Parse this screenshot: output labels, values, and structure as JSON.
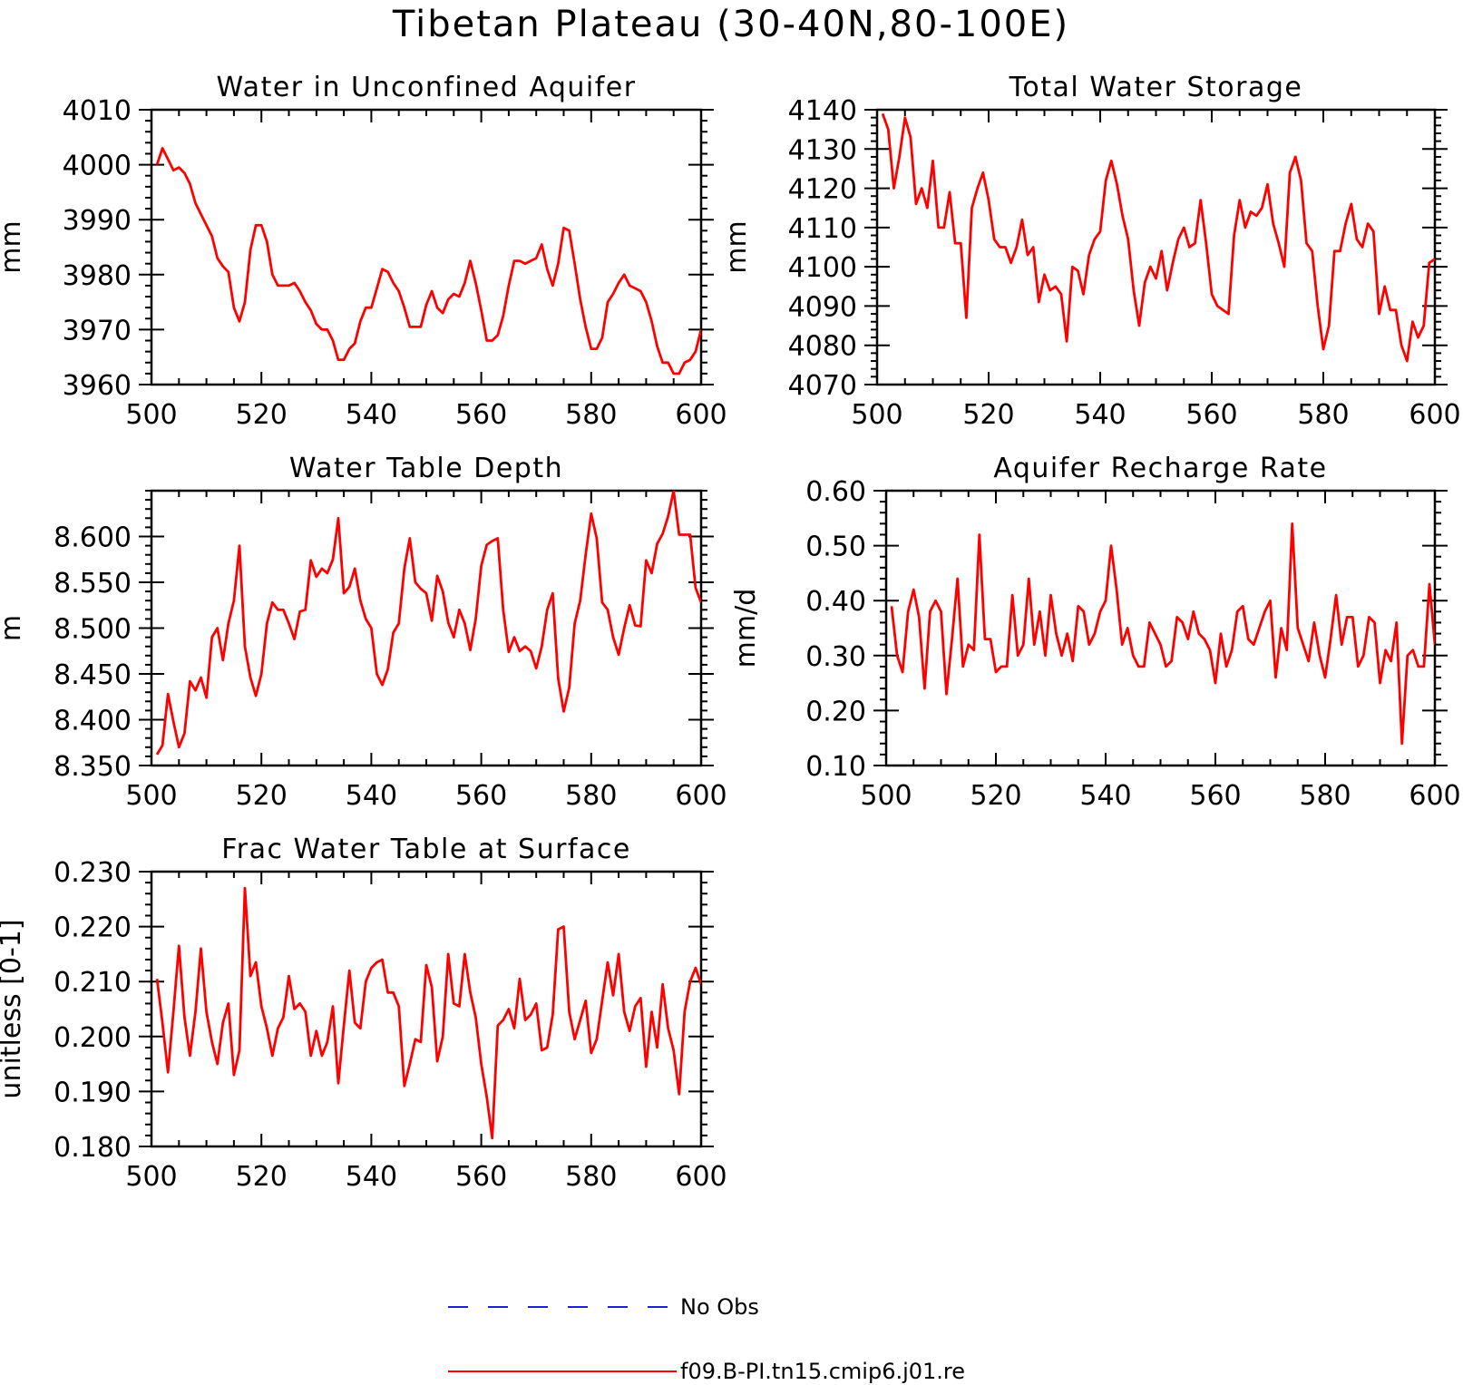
{
  "figure": {
    "title": "Tibetan Plateau (30-40N,80-100E)"
  },
  "legend": {
    "entries": [
      {
        "label": "No Obs",
        "color": "#1f1fd6",
        "style": "dashed"
      },
      {
        "label": "f09.B-PI.tn15.cmip6.j01.re",
        "color": "#ff0000",
        "style": "solid"
      }
    ]
  },
  "chart_data": [
    {
      "type": "line",
      "title": "Water in Unconfined Aquifer",
      "ylabel": "mm",
      "xlim": [
        500,
        600
      ],
      "ylim": [
        3960,
        4010
      ],
      "xticks": [
        500,
        520,
        540,
        560,
        580,
        600
      ],
      "yticks": [
        3960,
        3970,
        3980,
        3990,
        4000,
        4010
      ],
      "ytick_labels": [
        "3960",
        "3970",
        "3980",
        "3990",
        "4000",
        "4010"
      ],
      "color": "#ff0000",
      "x": [
        501,
        502,
        503,
        504,
        505,
        506,
        507,
        508,
        509,
        510,
        511,
        512,
        513,
        514,
        515,
        516,
        517,
        518,
        519,
        520,
        521,
        522,
        523,
        524,
        525,
        526,
        527,
        528,
        529,
        530,
        531,
        532,
        533,
        534,
        535,
        536,
        537,
        538,
        539,
        540,
        541,
        542,
        543,
        544,
        545,
        546,
        547,
        548,
        549,
        550,
        551,
        552,
        553,
        554,
        555,
        556,
        557,
        558,
        559,
        560,
        561,
        562,
        563,
        564,
        565,
        566,
        567,
        568,
        569,
        570,
        571,
        572,
        573,
        574,
        575,
        576,
        577,
        578,
        579,
        580,
        581,
        582,
        583,
        584,
        585,
        586,
        587,
        588,
        589,
        590,
        591,
        592,
        593,
        594,
        595,
        596,
        597,
        598,
        599,
        600
      ],
      "y": [
        4000,
        4003,
        4001,
        3999,
        3999.5,
        3998.5,
        3996.5,
        3993,
        3991,
        3989,
        3987,
        3983,
        3981.5,
        3980.5,
        3974,
        3971.5,
        3975,
        3984.5,
        3989,
        3989,
        3986,
        3980,
        3978,
        3978,
        3978,
        3978.5,
        3977,
        3975,
        3973.5,
        3971,
        3970,
        3970,
        3968,
        3964.5,
        3964.5,
        3966.5,
        3967.5,
        3971.5,
        3974,
        3974,
        3977.5,
        3981,
        3980.5,
        3978.5,
        3977,
        3974,
        3970.5,
        3970.5,
        3970.5,
        3974.5,
        3977,
        3974,
        3973,
        3975.5,
        3976.5,
        3976,
        3978.5,
        3982.5,
        3978.5,
        3973.5,
        3968,
        3968,
        3969,
        3972.5,
        3978,
        3982.5,
        3982.5,
        3982,
        3982.5,
        3983,
        3985.5,
        3981,
        3978,
        3982,
        3988.5,
        3988,
        3982,
        3975.5,
        3970.5,
        3966.5,
        3966.5,
        3968.5,
        3975,
        3976.5,
        3978.5,
        3980,
        3978,
        3977.5,
        3977,
        3975,
        3971.5,
        3967,
        3964,
        3964,
        3962,
        3962,
        3964,
        3964.5,
        3966,
        3970
      ]
    },
    {
      "type": "line",
      "title": "Total Water Storage",
      "ylabel": "mm",
      "xlim": [
        500,
        600
      ],
      "ylim": [
        4070,
        4140
      ],
      "xticks": [
        500,
        520,
        540,
        560,
        580,
        600
      ],
      "yticks": [
        4070,
        4080,
        4090,
        4100,
        4110,
        4120,
        4130,
        4140
      ],
      "ytick_labels": [
        "4070",
        "4080",
        "4090",
        "4100",
        "4110",
        "4120",
        "4130",
        "4140"
      ],
      "color": "#ff0000",
      "x": [
        501,
        502,
        503,
        504,
        505,
        506,
        507,
        508,
        509,
        510,
        511,
        512,
        513,
        514,
        515,
        516,
        517,
        518,
        519,
        520,
        521,
        522,
        523,
        524,
        525,
        526,
        527,
        528,
        529,
        530,
        531,
        532,
        533,
        534,
        535,
        536,
        537,
        538,
        539,
        540,
        541,
        542,
        543,
        544,
        545,
        546,
        547,
        548,
        549,
        550,
        551,
        552,
        553,
        554,
        555,
        556,
        557,
        558,
        559,
        560,
        561,
        562,
        563,
        564,
        565,
        566,
        567,
        568,
        569,
        570,
        571,
        572,
        573,
        574,
        575,
        576,
        577,
        578,
        579,
        580,
        581,
        582,
        583,
        584,
        585,
        586,
        587,
        588,
        589,
        590,
        591,
        592,
        593,
        594,
        595,
        596,
        597,
        598,
        599,
        600
      ],
      "y": [
        4139,
        4135,
        4120,
        4128,
        4138,
        4133,
        4116,
        4120,
        4115,
        4127,
        4110,
        4110,
        4119,
        4106,
        4106,
        4087,
        4115,
        4120,
        4124,
        4117,
        4107,
        4105,
        4105,
        4101,
        4105,
        4112,
        4103,
        4105,
        4091,
        4098,
        4094,
        4095,
        4093,
        4081,
        4100,
        4099,
        4093,
        4103,
        4107,
        4109,
        4122,
        4127,
        4121,
        4113,
        4107,
        4094,
        4085,
        4096,
        4100,
        4097,
        4104,
        4094,
        4101,
        4107,
        4110,
        4105,
        4106,
        4117,
        4106,
        4093,
        4090,
        4089,
        4088,
        4108,
        4117,
        4110,
        4114,
        4113,
        4115,
        4121,
        4111,
        4106,
        4100,
        4124,
        4128,
        4122,
        4106,
        4104,
        4090,
        4079,
        4085,
        4104,
        4104,
        4111,
        4116,
        4107,
        4105,
        4111,
        4109,
        4088,
        4095,
        4089,
        4089,
        4080,
        4076,
        4086,
        4082,
        4085,
        4101,
        4102
      ]
    },
    {
      "type": "line",
      "title": "Water Table Depth",
      "ylabel": "m",
      "xlim": [
        500,
        600
      ],
      "ylim": [
        8.35,
        8.65
      ],
      "xticks": [
        500,
        520,
        540,
        560,
        580,
        600
      ],
      "yticks": [
        8.35,
        8.4,
        8.45,
        8.5,
        8.55,
        8.6
      ],
      "ytick_labels": [
        "8.350",
        "8.400",
        "8.450",
        "8.500",
        "8.550",
        "8.600"
      ],
      "color": "#ff0000",
      "x": [
        501,
        502,
        503,
        504,
        505,
        506,
        507,
        508,
        509,
        510,
        511,
        512,
        513,
        514,
        515,
        516,
        517,
        518,
        519,
        520,
        521,
        522,
        523,
        524,
        525,
        526,
        527,
        528,
        529,
        530,
        531,
        532,
        533,
        534,
        535,
        536,
        537,
        538,
        539,
        540,
        541,
        542,
        543,
        544,
        545,
        546,
        547,
        548,
        549,
        550,
        551,
        552,
        553,
        554,
        555,
        556,
        557,
        558,
        559,
        560,
        561,
        562,
        563,
        564,
        565,
        566,
        567,
        568,
        569,
        570,
        571,
        572,
        573,
        574,
        575,
        576,
        577,
        578,
        579,
        580,
        581,
        582,
        583,
        584,
        585,
        586,
        587,
        588,
        589,
        590,
        591,
        592,
        593,
        594,
        595,
        596,
        597,
        598,
        599,
        600
      ],
      "y": [
        8.362,
        8.372,
        8.428,
        8.398,
        8.37,
        8.385,
        8.442,
        8.432,
        8.446,
        8.424,
        8.49,
        8.5,
        8.465,
        8.505,
        8.53,
        8.59,
        8.48,
        8.446,
        8.426,
        8.45,
        8.505,
        8.528,
        8.52,
        8.52,
        8.505,
        8.488,
        8.518,
        8.52,
        8.574,
        8.556,
        8.565,
        8.56,
        8.575,
        8.62,
        8.538,
        8.545,
        8.565,
        8.53,
        8.51,
        8.5,
        8.45,
        8.438,
        8.455,
        8.495,
        8.505,
        8.565,
        8.598,
        8.55,
        8.543,
        8.538,
        8.508,
        8.557,
        8.54,
        8.506,
        8.49,
        8.52,
        8.505,
        8.476,
        8.51,
        8.568,
        8.591,
        8.595,
        8.598,
        8.52,
        8.474,
        8.49,
        8.475,
        8.48,
        8.475,
        8.456,
        8.48,
        8.52,
        8.538,
        8.445,
        8.409,
        8.435,
        8.505,
        8.53,
        8.58,
        8.625,
        8.598,
        8.528,
        8.52,
        8.49,
        8.471,
        8.5,
        8.525,
        8.503,
        8.502,
        8.574,
        8.56,
        8.592,
        8.603,
        8.622,
        8.65,
        8.602,
        8.602,
        8.602,
        8.544,
        8.528
      ]
    },
    {
      "type": "line",
      "title": "Aquifer Recharge Rate",
      "ylabel": "mm/d",
      "xlim": [
        500,
        600
      ],
      "ylim": [
        0.1,
        0.6
      ],
      "xticks": [
        500,
        520,
        540,
        560,
        580,
        600
      ],
      "yticks": [
        0.1,
        0.2,
        0.3,
        0.4,
        0.5,
        0.6
      ],
      "ytick_labels": [
        "0.10",
        "0.20",
        "0.30",
        "0.40",
        "0.50",
        "0.60"
      ],
      "color": "#ff0000",
      "x": [
        501,
        502,
        503,
        504,
        505,
        506,
        507,
        508,
        509,
        510,
        511,
        512,
        513,
        514,
        515,
        516,
        517,
        518,
        519,
        520,
        521,
        522,
        523,
        524,
        525,
        526,
        527,
        528,
        529,
        530,
        531,
        532,
        533,
        534,
        535,
        536,
        537,
        538,
        539,
        540,
        541,
        542,
        543,
        544,
        545,
        546,
        547,
        548,
        549,
        550,
        551,
        552,
        553,
        554,
        555,
        556,
        557,
        558,
        559,
        560,
        561,
        562,
        563,
        564,
        565,
        566,
        567,
        568,
        569,
        570,
        571,
        572,
        573,
        574,
        575,
        576,
        577,
        578,
        579,
        580,
        581,
        582,
        583,
        584,
        585,
        586,
        587,
        588,
        589,
        590,
        591,
        592,
        593,
        594,
        595,
        596,
        597,
        598,
        599,
        600
      ],
      "y": [
        0.39,
        0.3,
        0.27,
        0.38,
        0.42,
        0.37,
        0.24,
        0.38,
        0.4,
        0.38,
        0.23,
        0.33,
        0.44,
        0.28,
        0.32,
        0.31,
        0.52,
        0.33,
        0.33,
        0.27,
        0.28,
        0.28,
        0.41,
        0.3,
        0.32,
        0.44,
        0.32,
        0.38,
        0.3,
        0.41,
        0.34,
        0.3,
        0.34,
        0.29,
        0.39,
        0.38,
        0.32,
        0.34,
        0.38,
        0.4,
        0.5,
        0.42,
        0.32,
        0.35,
        0.3,
        0.28,
        0.28,
        0.36,
        0.34,
        0.32,
        0.28,
        0.29,
        0.37,
        0.36,
        0.33,
        0.38,
        0.34,
        0.33,
        0.31,
        0.25,
        0.34,
        0.28,
        0.31,
        0.38,
        0.39,
        0.33,
        0.32,
        0.35,
        0.38,
        0.4,
        0.26,
        0.35,
        0.31,
        0.54,
        0.35,
        0.32,
        0.29,
        0.36,
        0.3,
        0.26,
        0.33,
        0.41,
        0.32,
        0.37,
        0.37,
        0.28,
        0.3,
        0.37,
        0.36,
        0.25,
        0.31,
        0.29,
        0.36,
        0.14,
        0.3,
        0.31,
        0.28,
        0.28,
        0.43,
        0.32
      ]
    },
    {
      "type": "line",
      "title": "Frac Water Table at Surface",
      "ylabel": "unitless [0-1]",
      "xlim": [
        500,
        600
      ],
      "ylim": [
        0.18,
        0.23
      ],
      "xticks": [
        500,
        520,
        540,
        560,
        580,
        600
      ],
      "yticks": [
        0.18,
        0.19,
        0.2,
        0.21,
        0.22,
        0.23
      ],
      "ytick_labels": [
        "0.180",
        "0.190",
        "0.200",
        "0.210",
        "0.220",
        "0.230"
      ],
      "color": "#ff0000",
      "x": [
        501,
        502,
        503,
        504,
        505,
        506,
        507,
        508,
        509,
        510,
        511,
        512,
        513,
        514,
        515,
        516,
        517,
        518,
        519,
        520,
        521,
        522,
        523,
        524,
        525,
        526,
        527,
        528,
        529,
        530,
        531,
        532,
        533,
        534,
        535,
        536,
        537,
        538,
        539,
        540,
        541,
        542,
        543,
        544,
        545,
        546,
        547,
        548,
        549,
        550,
        551,
        552,
        553,
        554,
        555,
        556,
        557,
        558,
        559,
        560,
        561,
        562,
        563,
        564,
        565,
        566,
        567,
        568,
        569,
        570,
        571,
        572,
        573,
        574,
        575,
        576,
        577,
        578,
        579,
        580,
        581,
        582,
        583,
        584,
        585,
        586,
        587,
        588,
        589,
        590,
        591,
        592,
        593,
        594,
        595,
        596,
        597,
        598,
        599,
        600
      ],
      "y": [
        0.2105,
        0.2025,
        0.1935,
        0.2045,
        0.2165,
        0.2035,
        0.1965,
        0.2045,
        0.216,
        0.2045,
        0.199,
        0.195,
        0.2025,
        0.206,
        0.193,
        0.1975,
        0.227,
        0.211,
        0.2135,
        0.2055,
        0.2015,
        0.1965,
        0.2015,
        0.2035,
        0.211,
        0.205,
        0.206,
        0.2045,
        0.1965,
        0.201,
        0.1965,
        0.199,
        0.2055,
        0.1915,
        0.202,
        0.212,
        0.2025,
        0.2015,
        0.21,
        0.2125,
        0.2135,
        0.214,
        0.208,
        0.208,
        0.2055,
        0.191,
        0.195,
        0.1995,
        0.199,
        0.213,
        0.209,
        0.1955,
        0.2,
        0.215,
        0.206,
        0.2055,
        0.215,
        0.208,
        0.2035,
        0.195,
        0.189,
        0.1815,
        0.202,
        0.203,
        0.205,
        0.2015,
        0.2105,
        0.203,
        0.204,
        0.206,
        0.1975,
        0.198,
        0.204,
        0.2195,
        0.22,
        0.2045,
        0.1995,
        0.203,
        0.2065,
        0.197,
        0.1995,
        0.2065,
        0.2135,
        0.2075,
        0.215,
        0.2045,
        0.201,
        0.2055,
        0.207,
        0.1945,
        0.2045,
        0.198,
        0.2095,
        0.2015,
        0.1975,
        0.1895,
        0.2045,
        0.21,
        0.2125,
        0.2095
      ]
    }
  ]
}
